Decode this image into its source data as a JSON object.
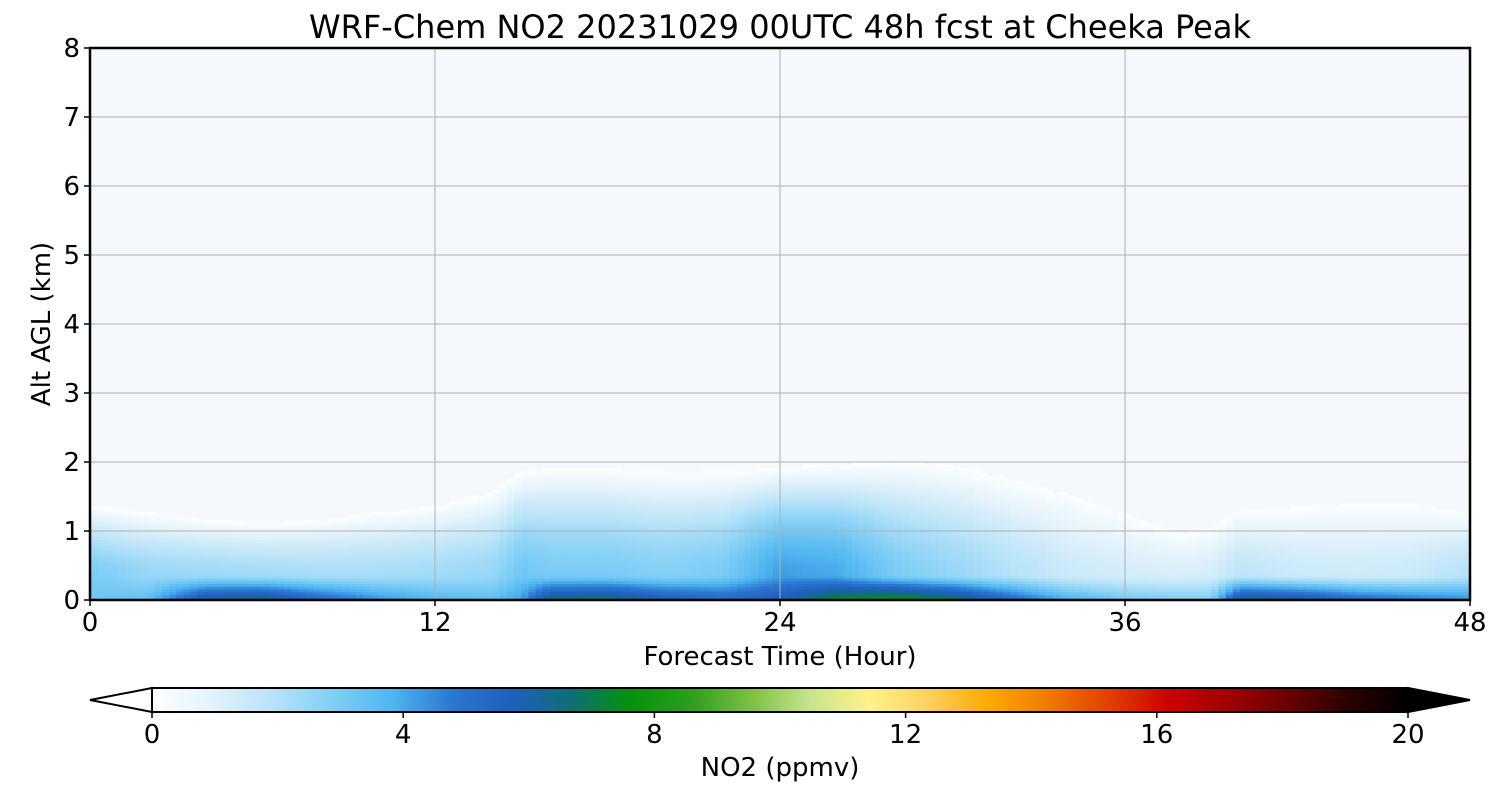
{
  "chart_data": {
    "type": "heatmap",
    "title": "WRF-Chem NO2  20231029 00UTC 48h fcst at Cheeka Peak",
    "xlabel": "Forecast Time (Hour)",
    "ylabel": "Alt AGL (km)",
    "xlim": [
      0,
      48
    ],
    "ylim": [
      0,
      8
    ],
    "x_ticks": [
      "0",
      "12",
      "24",
      "36",
      "48"
    ],
    "y_ticks": [
      "0",
      "1",
      "2",
      "3",
      "4",
      "5",
      "6",
      "7",
      "8"
    ],
    "grid": true,
    "colorbar": {
      "label": "NO2  (ppmv)",
      "range": [
        0,
        20
      ],
      "ticks": [
        "0",
        "4",
        "8",
        "12",
        "16",
        "20"
      ],
      "extend": "both",
      "colors": [
        "#ffffff",
        "#e3f2fb",
        "#b9e3f8",
        "#82cff6",
        "#4fb6f0",
        "#2a78d1",
        "#1f5fbf",
        "#0f6e76",
        "#05920a",
        "#2c9e1e",
        "#7bbf42",
        "#c7e48c",
        "#fff28a",
        "#ffd060",
        "#ffa800",
        "#f07800",
        "#e04000",
        "#cc0000",
        "#a00000",
        "#6a0000",
        "#2a0000",
        "#000000"
      ]
    },
    "field": {
      "description_units": "ppmv",
      "hours": [
        0,
        2,
        4,
        6,
        8,
        10,
        12,
        14,
        15,
        16,
        18,
        20,
        22,
        24,
        26,
        28,
        30,
        32,
        34,
        36,
        38,
        39,
        40,
        42,
        44,
        46,
        48
      ],
      "top_km": [
        1.4,
        1.3,
        1.2,
        1.15,
        1.2,
        1.3,
        1.4,
        1.6,
        1.9,
        1.95,
        1.95,
        1.9,
        1.9,
        1.95,
        2.0,
        2.05,
        2.0,
        1.8,
        1.6,
        1.3,
        1.0,
        1.1,
        1.35,
        1.4,
        1.45,
        1.45,
        1.3
      ],
      "surface_ppmv": [
        3.2,
        3.5,
        6.5,
        6.8,
        5.5,
        4.5,
        3.8,
        3.5,
        4.2,
        6.8,
        7.0,
        6.0,
        5.5,
        6.0,
        7.5,
        8.0,
        7.2,
        5.5,
        4.0,
        3.2,
        3.0,
        3.0,
        6.8,
        6.5,
        5.5,
        5.0,
        4.5
      ],
      "column_ppmv": [
        3.0,
        2.5,
        2.4,
        2.3,
        2.2,
        2.2,
        2.3,
        2.5,
        3.2,
        3.0,
        3.0,
        2.8,
        3.0,
        4.2,
        4.0,
        3.0,
        2.5,
        2.0,
        1.5,
        1.3,
        1.2,
        1.3,
        1.8,
        1.5,
        1.4,
        1.5,
        2.0
      ]
    }
  }
}
